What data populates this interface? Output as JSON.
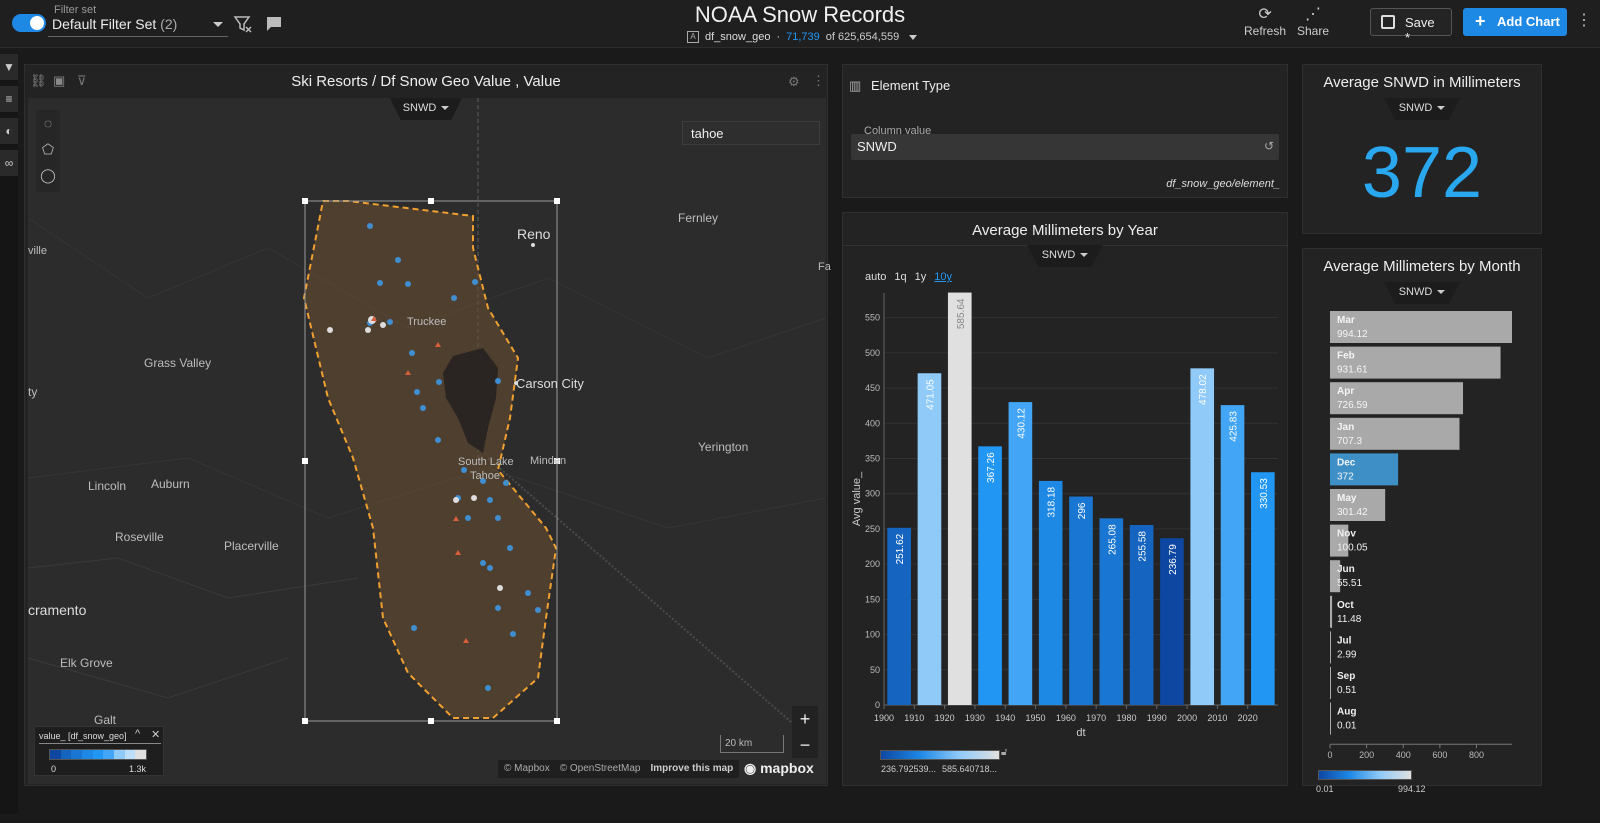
{
  "topbar": {
    "filter_set_label": "Filter set",
    "filter_set_name": "Default Filter Set",
    "filter_set_count": "(2)",
    "title": "NOAA Snow Records",
    "table_name": "df_snow_geo",
    "filtered_count": "71,739",
    "total_count": "of 625,654,559",
    "refresh_label": "Refresh",
    "share_label": "Share",
    "save_label": "Save *",
    "add_chart_label": "Add Chart"
  },
  "map_panel": {
    "title": "Ski Resorts / Df Snow Geo Value , Value",
    "measure": "SNWD",
    "search_value": "tahoe",
    "labels": [
      "Reno",
      "Fernley",
      "Truckee",
      "Grass Valley",
      "Carson City",
      "South Lake",
      "Tahoe",
      "Minden",
      "Yerington",
      "Lincoln",
      "Auburn",
      "Roseville",
      "Placerville",
      "cramento",
      "Elk Grove",
      "Galt",
      "ville",
      "ty",
      "Fa"
    ],
    "legend_title": "value_ [df_snow_geo]",
    "legend_min": "0",
    "legend_max": "1.3k",
    "scale": "20 km",
    "attribution": [
      "© Mapbox",
      "© OpenStreetMap",
      "Improve this map"
    ],
    "logo": "mapbox",
    "zoom_in": "+",
    "zoom_out": "−"
  },
  "element_panel": {
    "title": "Element Type",
    "field_label": "Column value",
    "field_value": "SNWD",
    "path": "df_snow_geo/element_"
  },
  "kpi_panel": {
    "title": "Average SNWD in Millimeters",
    "measure": "SNWD",
    "value": "372"
  },
  "year_panel": {
    "title": "Average Millimeters by Year",
    "measure": "SNWD",
    "granularity": [
      "auto",
      "1q",
      "1y",
      "10y"
    ],
    "legend_min": "236.792539...",
    "legend_max": "585.640718..."
  },
  "month_panel": {
    "title": "Average Millimeters by Month",
    "measure": "SNWD",
    "legend_min": "0.01",
    "legend_max": "994.12"
  },
  "chart_data": [
    {
      "type": "bar",
      "title": "Average Millimeters by Year",
      "xlabel": "dt",
      "ylabel": "Avg value_",
      "ylim": [
        0,
        585
      ],
      "yticks": [
        0,
        50,
        100,
        150,
        200,
        250,
        300,
        350,
        400,
        450,
        500,
        550
      ],
      "categories": [
        "1900",
        "1910",
        "1920",
        "1930",
        "1940",
        "1950",
        "1960",
        "1970",
        "1980",
        "1990",
        "2000",
        "2010",
        "2020"
      ],
      "values": [
        251.62,
        471.05,
        585.64,
        367.26,
        430.12,
        318.18,
        296,
        265.08,
        255.58,
        236.79,
        478.02,
        425.83,
        330.53
      ],
      "value_labels": [
        "251.62",
        "471.05",
        "585.64",
        "367.26",
        "430.12",
        "318.18",
        "296",
        "265.08",
        "255.58",
        "236.79",
        "478.02",
        "425.83",
        "330.53"
      ],
      "colors": [
        "#1565c0",
        "#90caf9",
        "#e0e0e0",
        "#2196f3",
        "#42a5f5",
        "#1e88e5",
        "#1976d2",
        "#1976d2",
        "#1565c0",
        "#0d47a1",
        "#90caf9",
        "#42a5f5",
        "#2196f3"
      ]
    },
    {
      "type": "bar",
      "orientation": "horizontal",
      "title": "Average Millimeters by Month",
      "xlim": [
        0,
        994.12
      ],
      "xticks": [
        0,
        200,
        400,
        600,
        800
      ],
      "categories": [
        "Mar",
        "Feb",
        "Apr",
        "Jan",
        "Dec",
        "May",
        "Nov",
        "Jun",
        "Oct",
        "Jul",
        "Sep",
        "Aug"
      ],
      "values": [
        994.12,
        931.61,
        726.59,
        707.3,
        372,
        301.42,
        100.05,
        55.51,
        11.48,
        2.99,
        0.51,
        0.01
      ],
      "value_labels": [
        "994.12",
        "931.61",
        "726.59",
        "707.3",
        "372",
        "301.42",
        "100.05",
        "55.51",
        "11.48",
        "2.99",
        "0.51",
        "0.01"
      ],
      "selected": "Dec"
    }
  ]
}
